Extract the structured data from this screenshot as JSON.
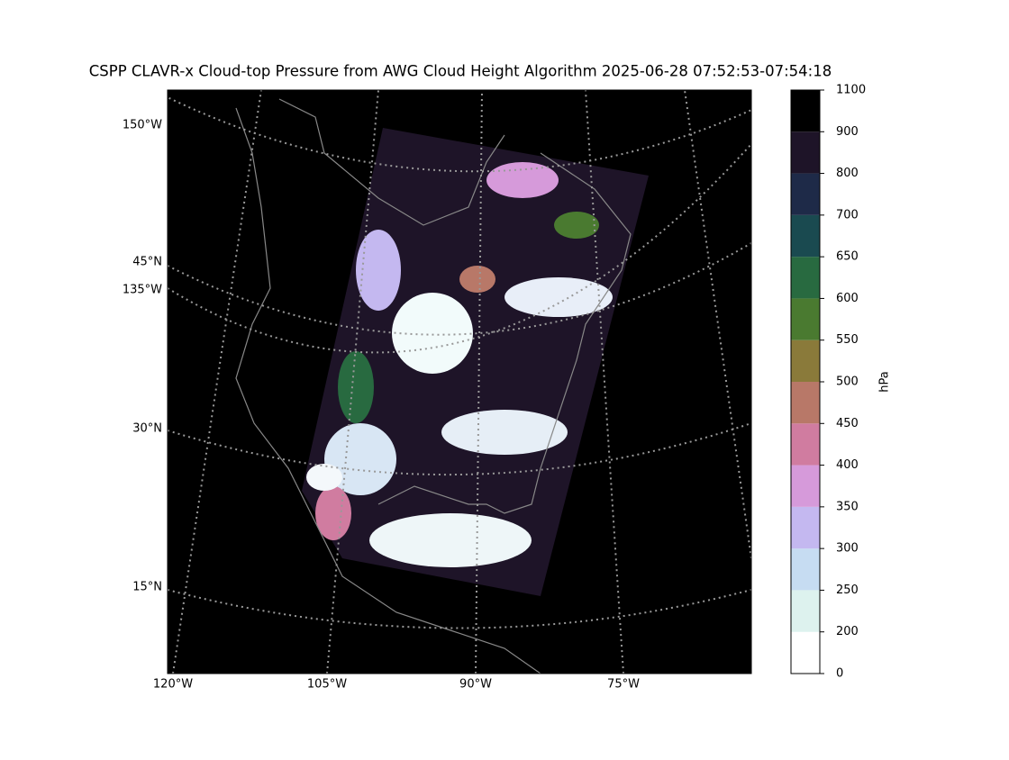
{
  "title": "CSPP CLAVR-x Cloud-top Pressure from AWG Cloud Height Algorithm 2025-06-28 07:52:53-07:54:18",
  "map": {
    "left_labels": [
      "150°W",
      "45°N",
      "135°W",
      "30°N",
      "15°N"
    ],
    "bottom_labels": [
      "120°W",
      "105°W",
      "90°W",
      "75°W"
    ]
  },
  "colorbar": {
    "label": "hPa",
    "ticks": [
      0,
      200,
      250,
      300,
      350,
      400,
      450,
      500,
      550,
      600,
      650,
      700,
      800,
      900,
      1100
    ],
    "colors": [
      "#ffffff",
      "#ddf2ee",
      "#c6dcf2",
      "#c4b8f0",
      "#d69ada",
      "#d07ca0",
      "#b87868",
      "#8a7a3a",
      "#4a7a30",
      "#286a40",
      "#1a4a50",
      "#1e2a48",
      "#1e1428",
      "#000000"
    ]
  }
}
